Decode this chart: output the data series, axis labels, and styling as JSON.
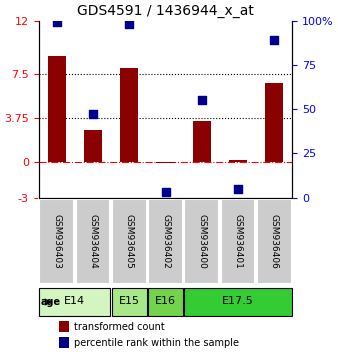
{
  "title": "GDS4591 / 1436944_x_at",
  "samples": [
    "GSM936403",
    "GSM936404",
    "GSM936405",
    "GSM936402",
    "GSM936400",
    "GSM936401",
    "GSM936406"
  ],
  "transformed_count": [
    9.0,
    2.7,
    8.0,
    -0.1,
    3.5,
    0.15,
    6.7
  ],
  "percentile_rank": [
    99,
    47,
    98,
    3,
    55,
    5,
    89
  ],
  "ylim_left": [
    -3,
    12
  ],
  "ylim_right": [
    0,
    100
  ],
  "yticks_left": [
    -3,
    0,
    3.75,
    7.5,
    12
  ],
  "yticks_right": [
    0,
    25,
    50,
    75,
    100
  ],
  "hlines_dotted": [
    7.5,
    3.75
  ],
  "hline_dashdot": 0,
  "bar_color": "#8B0000",
  "dot_color": "#00008B",
  "age_groups": [
    {
      "label": "E14",
      "samples": [
        "GSM936403",
        "GSM936404"
      ],
      "color": "#d4f5c0"
    },
    {
      "label": "E15",
      "samples": [
        "GSM936405"
      ],
      "color": "#a8e888"
    },
    {
      "label": "E16",
      "samples": [
        "GSM936402"
      ],
      "color": "#72d44a"
    },
    {
      "label": "E17.5",
      "samples": [
        "GSM936400",
        "GSM936401",
        "GSM936406"
      ],
      "color": "#33cc33"
    }
  ],
  "legend_bar_label": "transformed count",
  "legend_dot_label": "percentile rank within the sample",
  "age_label": "age",
  "background_color": "#ffffff",
  "sample_box_color": "#cccccc"
}
